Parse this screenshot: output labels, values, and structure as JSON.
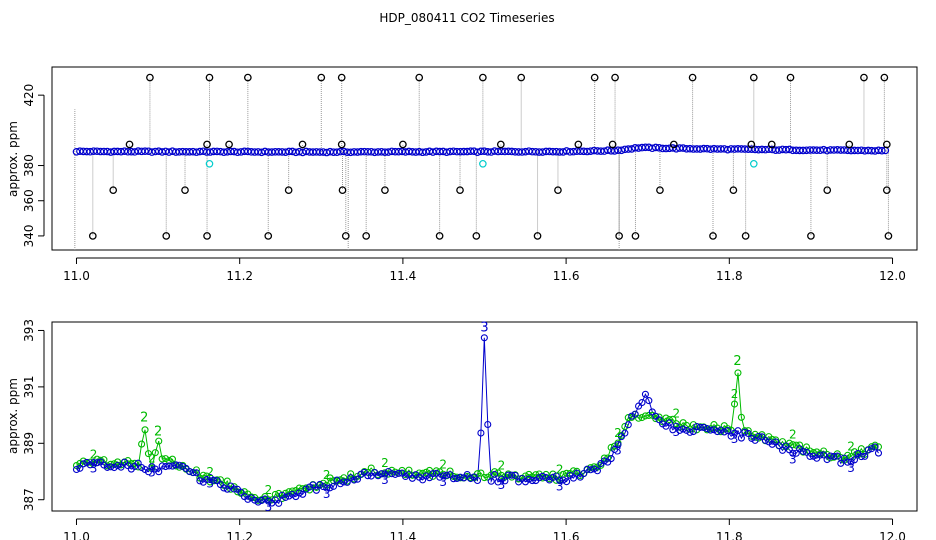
{
  "title": "HDP_080411  CO2 Timeseries",
  "colors": {
    "raw_points": "#000000",
    "raw_lines": "#9a9a9a",
    "series_blue": "#0000cc",
    "series_green": "#00bb00",
    "series_cyan": "#00cccc",
    "frame": "#000000",
    "background": "#ffffff"
  },
  "chart_data": [
    {
      "type": "scatter",
      "ylabel": "approx. ppm",
      "xlim": [
        10.97,
        12.03
      ],
      "ylim": [
        332,
        436
      ],
      "x_ticks": [
        "11.0",
        "11.2",
        "11.4",
        "11.6",
        "11.8",
        "12.0"
      ],
      "x_tick_values": [
        11.0,
        11.2,
        11.4,
        11.6,
        11.8,
        12.0
      ],
      "y_ticks": [
        "340",
        "360",
        "380",
        "420"
      ],
      "y_tick_values": [
        340,
        360,
        380,
        420
      ],
      "grid": false,
      "series": [
        {
          "marker": "open-circle",
          "color": "blue",
          "x_start": 11.0,
          "x_end": 11.995,
          "x_step": 0.0042,
          "baseline": [
            [
              11.0,
              388.0
            ],
            [
              11.3,
              387.7
            ],
            [
              11.6,
              388.0
            ],
            [
              11.66,
              388.5
            ],
            [
              11.69,
              390.2
            ],
            [
              11.75,
              389.6
            ],
            [
              11.85,
              389.0
            ],
            [
              11.995,
              388.4
            ]
          ]
        },
        {
          "marker": "open-circle",
          "color": "cyan",
          "x": [
            11.163,
            11.498,
            11.83
          ],
          "y": [
            381,
            381,
            381
          ]
        },
        {
          "marker": "open-circle",
          "color": "black",
          "x_top": [
            11.09,
            11.163,
            11.21,
            11.3,
            11.325,
            11.42,
            11.498,
            11.545,
            11.635,
            11.66,
            11.755,
            11.83,
            11.875,
            11.965,
            11.99
          ],
          "y_top": 430,
          "x_bottom": [
            11.02,
            11.11,
            11.16,
            11.235,
            11.33,
            11.355,
            11.445,
            11.49,
            11.565,
            11.665,
            11.685,
            11.78,
            11.82,
            11.9,
            11.995
          ],
          "y_bottom": 340,
          "x_mid_low": [
            11.045,
            11.133,
            11.26,
            11.326,
            11.378,
            11.47,
            11.59,
            11.715,
            11.805,
            11.92,
            11.993
          ],
          "y_mid_low": 366,
          "x_mid_high": [
            11.065,
            11.16,
            11.187,
            11.277,
            11.325,
            11.4,
            11.52,
            11.615,
            11.657,
            11.732,
            11.827,
            11.852,
            11.947,
            11.993
          ],
          "y_mid_high": 392
        }
      ]
    },
    {
      "type": "line",
      "ylabel": "approx. ppm",
      "xlim": [
        10.97,
        12.03
      ],
      "ylim": [
        386.6,
        393.3
      ],
      "x_ticks": [
        "11.0",
        "11.2",
        "11.4",
        "11.6",
        "11.8",
        "12.0"
      ],
      "x_tick_values": [
        11.0,
        11.2,
        11.4,
        11.6,
        11.8,
        12.0
      ],
      "y_ticks": [
        "387",
        "389",
        "391",
        "393"
      ],
      "y_tick_values": [
        387,
        389,
        391,
        393
      ],
      "grid": false,
      "series": [
        {
          "name": "2",
          "color": "green",
          "x_start": 11.0,
          "x_end": 11.985,
          "x_step": 0.0042,
          "curve": [
            [
              11.0,
              388.3
            ],
            [
              11.07,
              388.3
            ],
            [
              11.1,
              388.2
            ],
            [
              11.115,
              388.4
            ],
            [
              11.15,
              387.9
            ],
            [
              11.19,
              387.5
            ],
            [
              11.22,
              387.1
            ],
            [
              11.25,
              387.1
            ],
            [
              11.3,
              387.6
            ],
            [
              11.33,
              387.7
            ],
            [
              11.35,
              388.0
            ],
            [
              11.45,
              387.9
            ],
            [
              11.6,
              387.8
            ],
            [
              11.64,
              388.2
            ],
            [
              11.66,
              388.9
            ],
            [
              11.68,
              390.0
            ],
            [
              11.72,
              389.8
            ],
            [
              11.76,
              389.6
            ],
            [
              11.82,
              389.4
            ],
            [
              11.86,
              389.0
            ],
            [
              11.9,
              388.7
            ],
            [
              11.94,
              388.5
            ],
            [
              11.985,
              388.9
            ]
          ],
          "spikes": [
            [
              11.083,
              389.7
            ],
            [
              11.1,
              389.2
            ],
            [
              11.81,
              391.7
            ]
          ]
        },
        {
          "name": "3",
          "color": "blue",
          "x_start": 11.0,
          "x_end": 11.985,
          "x_step": 0.0042,
          "curve": [
            [
              11.0,
              388.2
            ],
            [
              11.07,
              388.2
            ],
            [
              11.1,
              388.0
            ],
            [
              11.115,
              388.3
            ],
            [
              11.15,
              387.8
            ],
            [
              11.19,
              387.4
            ],
            [
              11.22,
              387.0
            ],
            [
              11.25,
              387.0
            ],
            [
              11.3,
              387.5
            ],
            [
              11.33,
              387.6
            ],
            [
              11.35,
              387.9
            ],
            [
              11.45,
              387.8
            ],
            [
              11.6,
              387.7
            ],
            [
              11.64,
              388.1
            ],
            [
              11.66,
              388.7
            ],
            [
              11.68,
              389.8
            ],
            [
              11.695,
              390.7
            ],
            [
              11.72,
              389.6
            ],
            [
              11.76,
              389.5
            ],
            [
              11.82,
              389.3
            ],
            [
              11.86,
              388.9
            ],
            [
              11.9,
              388.6
            ],
            [
              11.94,
              388.4
            ],
            [
              11.985,
              388.8
            ]
          ],
          "spikes": [
            [
              11.5,
              392.9
            ]
          ]
        }
      ]
    }
  ]
}
